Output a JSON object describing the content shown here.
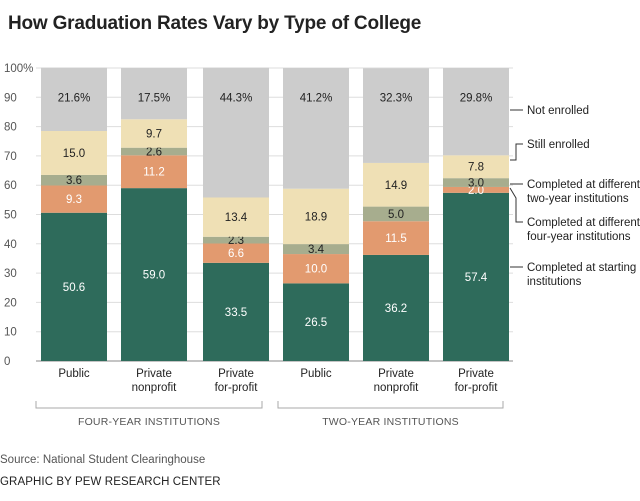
{
  "title": "How Graduation Rates Vary by Type of College",
  "source": "Source: National Student Clearinghouse",
  "credit": "GRAPHIC BY PEW RESEARCH CENTER",
  "colors": {
    "completed_starting": "#2e6b5b",
    "completed_four_year": "#e29a6f",
    "completed_two_year": "#a7ad8e",
    "still_enrolled": "#efe0b5",
    "not_enrolled": "#cccccc",
    "data_label_dark": "#ffffff",
    "data_label_light": "#222222"
  },
  "chart_data": {
    "type": "bar",
    "stacked": true,
    "title": "How Graduation Rates Vary by Type of College",
    "categories": [
      [
        "Public"
      ],
      [
        "Private",
        "nonprofit"
      ],
      [
        "Private",
        "for-profit"
      ],
      [
        "Public"
      ],
      [
        "Private",
        "nonprofit"
      ],
      [
        "Private",
        "for-profit"
      ]
    ],
    "groups": [
      {
        "label": "FOUR-YEAR INSTITUTIONS",
        "categories": [
          0,
          1,
          2
        ]
      },
      {
        "label": "TWO-YEAR INSTITUTIONS",
        "categories": [
          3,
          4,
          5
        ]
      }
    ],
    "ylim": [
      0,
      100
    ],
    "yticks": [
      "0",
      "10",
      "20",
      "30",
      "40",
      "50",
      "60",
      "70",
      "80",
      "90",
      "100%"
    ],
    "series": [
      {
        "key": "completed_starting",
        "values": [
          50.6,
          59.0,
          33.5,
          26.5,
          36.2,
          57.4
        ],
        "labels": [
          "50.6",
          "59.0",
          "33.5",
          "26.5",
          "36.2",
          "57.4"
        ],
        "legend": [
          "Completed at starting",
          "institutions"
        ]
      },
      {
        "key": "completed_four_year",
        "values": [
          9.3,
          11.2,
          6.6,
          10.0,
          11.5,
          2.0
        ],
        "labels": [
          "9.3",
          "11.2",
          "6.6",
          "10.0",
          "11.5",
          "2.0"
        ],
        "legend": [
          "Completed at different",
          "four-year institutions"
        ]
      },
      {
        "key": "completed_two_year",
        "values": [
          3.6,
          2.6,
          2.3,
          3.4,
          5.0,
          3.0
        ],
        "labels": [
          "3.6",
          "2.6",
          "2.3",
          "3.4",
          "5.0",
          "3.0"
        ],
        "legend": [
          "Completed at different",
          "two-year institutions"
        ]
      },
      {
        "key": "still_enrolled",
        "values": [
          15.0,
          9.7,
          13.4,
          18.9,
          14.9,
          7.8
        ],
        "labels": [
          "15.0",
          "9.7",
          "13.4",
          "18.9",
          "14.9",
          "7.8"
        ],
        "legend": [
          "Still enrolled"
        ]
      },
      {
        "key": "not_enrolled",
        "values": [
          21.6,
          17.5,
          44.3,
          41.2,
          32.3,
          29.8
        ],
        "labels": [
          "21.6%",
          "17.5%",
          "44.3%",
          "41.2%",
          "32.3%",
          "29.8%"
        ],
        "legend": [
          "Not enrolled"
        ]
      }
    ],
    "grid": true,
    "legend_position": "right"
  }
}
